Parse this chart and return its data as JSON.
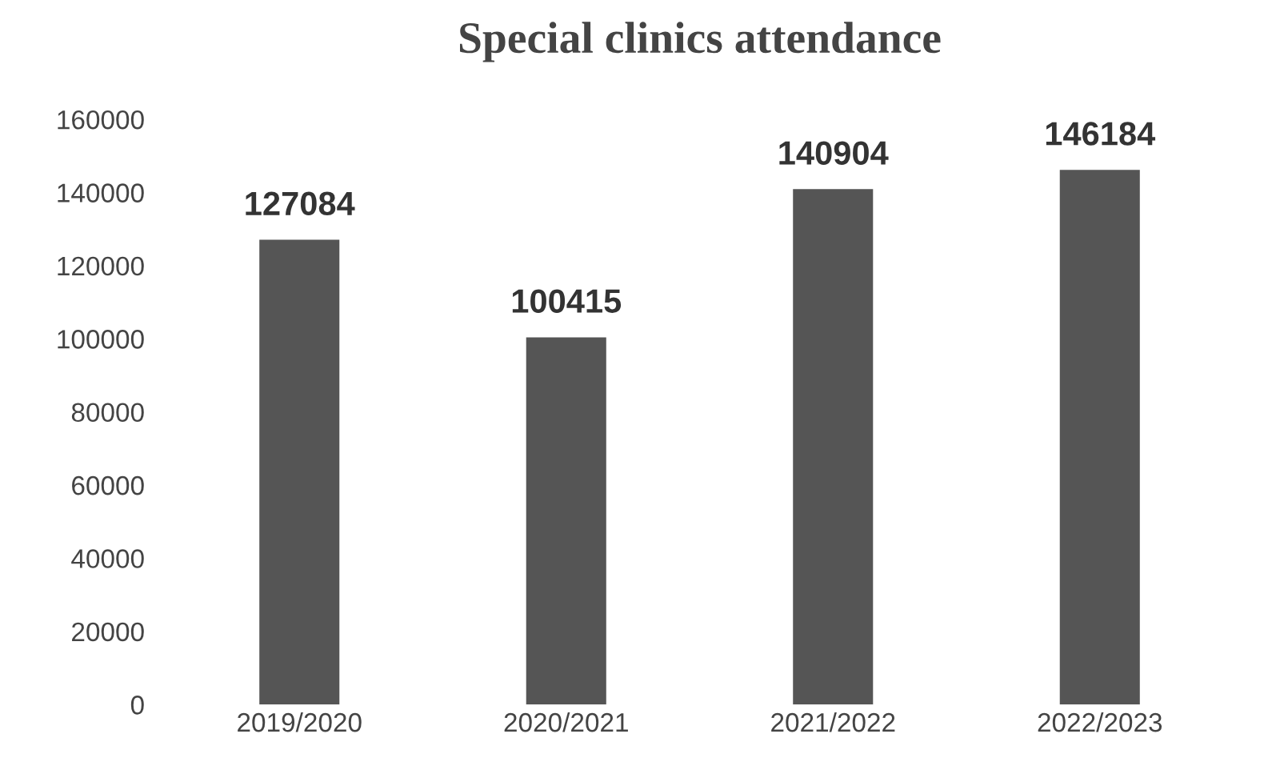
{
  "chart_data": {
    "type": "bar",
    "title": "Special clinics attendance",
    "categories": [
      "2019/2020",
      "2020/2021",
      "2021/2022",
      "2022/2023"
    ],
    "values": [
      127084,
      100415,
      140904,
      146184
    ],
    "color": "#555555",
    "ylim": [
      0,
      160000
    ],
    "yticks": [
      0,
      20000,
      40000,
      60000,
      80000,
      100000,
      120000,
      140000,
      160000
    ],
    "data_labels": true,
    "grid": false
  }
}
